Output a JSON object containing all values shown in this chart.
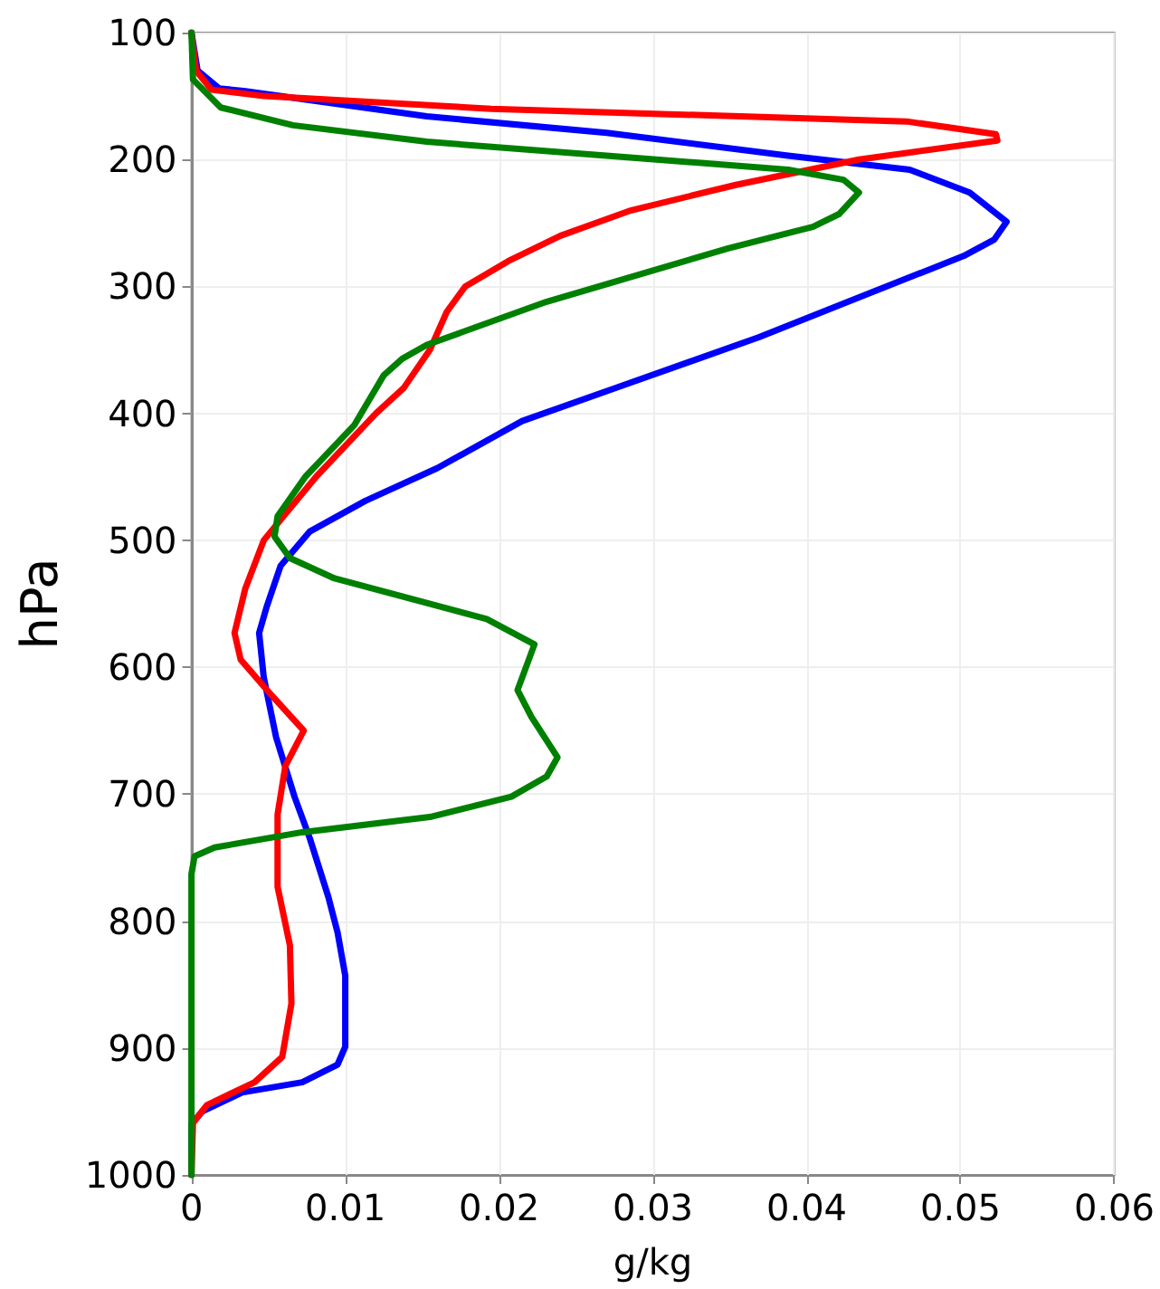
{
  "chart_data": {
    "type": "line",
    "xlabel": "g/kg",
    "ylabel": "hPa",
    "xlim": [
      0,
      0.06
    ],
    "xticks": [
      0,
      0.01,
      0.02,
      0.03,
      0.04,
      0.05,
      0.06
    ],
    "ylim": [
      1000,
      100
    ],
    "yticks": [
      100,
      200,
      300,
      400,
      500,
      600,
      700,
      800,
      900,
      1000
    ],
    "grid": true,
    "marker": "none",
    "line_style": "solid",
    "series": [
      {
        "color": "#0000ff",
        "x": [
          0,
          0.0004,
          0.0018,
          0.0034,
          0.0153,
          0.027,
          0.0388,
          0.0467,
          0.0506,
          0.053,
          0.0522,
          0.0502,
          0.0427,
          0.0369,
          0.0278,
          0.0215,
          0.016,
          0.0113,
          0.0077,
          0.0058,
          0.0049,
          0.0044,
          0.0047,
          0.0055,
          0.0067,
          0.0077,
          0.0089,
          0.0095,
          0.01,
          0.01,
          0.0095,
          0.0072,
          0.0033,
          0.0007,
          0,
          0
        ],
        "values": [
          100,
          130,
          144,
          146,
          166,
          179,
          197,
          208,
          226,
          249,
          263,
          276,
          312,
          340,
          379,
          406,
          443,
          469,
          493,
          520,
          552,
          573,
          608,
          655,
          702,
          735,
          781,
          809,
          843,
          899,
          913,
          927,
          935,
          950,
          960,
          1000
        ]
      },
      {
        "color": "#ff0000",
        "x": [
          0,
          0.0003,
          0.0013,
          0.0047,
          0.0195,
          0.0465,
          0.0523,
          0.0524,
          0.0434,
          0.0354,
          0.0286,
          0.024,
          0.0206,
          0.0178,
          0.0166,
          0.0155,
          0.0138,
          0.012,
          0.0081,
          0.0047,
          0.0035,
          0.0028,
          0.0032,
          0.0052,
          0.0073,
          0.0061,
          0.0056,
          0.0056,
          0.0064,
          0.0065,
          0.0059,
          0.0041,
          0.001,
          0.0001,
          0
        ],
        "values": [
          100,
          130,
          145,
          150,
          160,
          170,
          180,
          185,
          200,
          220,
          240,
          260,
          280,
          300,
          320,
          350,
          380,
          400,
          450,
          500,
          538,
          573,
          594,
          622,
          650,
          678,
          716,
          773,
          819,
          865,
          907,
          927,
          945,
          959,
          1000
        ]
      },
      {
        "color": "#008000",
        "x": [
          0,
          0.0001,
          0.0019,
          0.0066,
          0.0153,
          0.027,
          0.0388,
          0.0424,
          0.0434,
          0.0421,
          0.0404,
          0.0349,
          0.0231,
          0.0153,
          0.0137,
          0.0125,
          0.0106,
          0.0074,
          0.0056,
          0.0054,
          0.0064,
          0.0093,
          0.0192,
          0.0223,
          0.0212,
          0.0221,
          0.0238,
          0.0231,
          0.0208,
          0.0155,
          0.0072,
          0.0015,
          0.0002,
          0,
          0
        ],
        "values": [
          100,
          137,
          159,
          173,
          186,
          197,
          208,
          216,
          226,
          243,
          253,
          270,
          312,
          346,
          357,
          370,
          409,
          450,
          481,
          497,
          514,
          530,
          562,
          582,
          618,
          639,
          671,
          686,
          702,
          718,
          730,
          742,
          749,
          763,
          1000
        ]
      }
    ]
  }
}
